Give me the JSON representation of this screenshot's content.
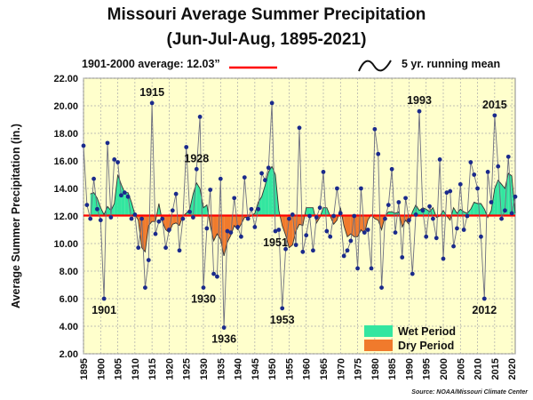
{
  "title_line1": "Missouri Average Summer Precipitation",
  "title_line2": "(Jun-Jul-Aug, 1895-2021)",
  "average_note": "1901-2000 average: 12.03”",
  "running_mean_note": "5 yr. running mean",
  "source": "Source: NOAA/Missouri Climate Center",
  "colors": {
    "plot_bg": "#ffffcc",
    "wet": "#33e6a0",
    "dry": "#f07a2c",
    "average": "#ff0000",
    "points": "#1a2a8c",
    "line": "#6d6f80"
  },
  "chart_data": {
    "type": "line",
    "title": "Missouri Average Summer Precipitation",
    "subtitle": "(Jun-Jul-Aug, 1895-2021)",
    "ylabel": "Average Summer Precipitation (in.)",
    "xlabel": "",
    "ylim": [
      2,
      22
    ],
    "xlim": [
      1895,
      2021
    ],
    "yticks": [
      "2.00",
      "4.00",
      "6.00",
      "8.00",
      "10.00",
      "12.00",
      "14.00",
      "16.00",
      "18.00",
      "20.00",
      "22.00"
    ],
    "xticks": [
      1895,
      1900,
      1905,
      1910,
      1915,
      1920,
      1925,
      1930,
      1935,
      1940,
      1945,
      1950,
      1955,
      1960,
      1965,
      1970,
      1975,
      1980,
      1985,
      1990,
      1995,
      2000,
      2005,
      2010,
      2015,
      2020
    ],
    "average": 12.03,
    "grid": true,
    "legend": [
      {
        "label": "Wet Period",
        "color": "#33e6a0"
      },
      {
        "label": "Dry Period",
        "color": "#f07a2c"
      }
    ],
    "legend_position": "bottom-right",
    "annotations": [
      {
        "year": 1901,
        "label": "1901"
      },
      {
        "year": 1915,
        "label": "1915"
      },
      {
        "year": 1928,
        "label": "1928"
      },
      {
        "year": 1930,
        "label": "1930"
      },
      {
        "year": 1936,
        "label": "1936"
      },
      {
        "year": 1951,
        "label": "1951"
      },
      {
        "year": 1953,
        "label": "1953"
      },
      {
        "year": 1993,
        "label": "1993"
      },
      {
        "year": 2012,
        "label": "2012"
      },
      {
        "year": 2015,
        "label": "2015"
      }
    ],
    "years": [
      1895,
      1896,
      1897,
      1898,
      1899,
      1900,
      1901,
      1902,
      1903,
      1904,
      1905,
      1906,
      1907,
      1908,
      1909,
      1910,
      1911,
      1912,
      1913,
      1914,
      1915,
      1916,
      1917,
      1918,
      1919,
      1920,
      1921,
      1922,
      1923,
      1924,
      1925,
      1926,
      1927,
      1928,
      1929,
      1930,
      1931,
      1932,
      1933,
      1934,
      1935,
      1936,
      1937,
      1938,
      1939,
      1940,
      1941,
      1942,
      1943,
      1944,
      1945,
      1946,
      1947,
      1948,
      1949,
      1950,
      1951,
      1952,
      1953,
      1954,
      1955,
      1956,
      1957,
      1958,
      1959,
      1960,
      1961,
      1962,
      1963,
      1964,
      1965,
      1966,
      1967,
      1968,
      1969,
      1970,
      1971,
      1972,
      1973,
      1974,
      1975,
      1976,
      1977,
      1978,
      1979,
      1980,
      1981,
      1982,
      1983,
      1984,
      1985,
      1986,
      1987,
      1988,
      1989,
      1990,
      1991,
      1992,
      1993,
      1994,
      1995,
      1996,
      1997,
      1998,
      1999,
      2000,
      2001,
      2002,
      2003,
      2004,
      2005,
      2006,
      2007,
      2008,
      2009,
      2010,
      2011,
      2012,
      2013,
      2014,
      2015,
      2016,
      2017,
      2018,
      2019,
      2020,
      2021
    ],
    "series": [
      {
        "name": "",
        "values": [
          17.1,
          12.8,
          11.8,
          14.7,
          12.5,
          11.7,
          6.0,
          17.3,
          11.9,
          16.1,
          15.9,
          13.5,
          13.7,
          13.4,
          11.8,
          12.1,
          9.7,
          11.8,
          6.8,
          8.8,
          20.2,
          10.7,
          11.6,
          11.8,
          9.7,
          11.0,
          12.4,
          13.6,
          9.5,
          11.8,
          17.0,
          12.3,
          11.9,
          15.4,
          19.2,
          6.8,
          11.1,
          13.9,
          7.8,
          7.6,
          14.7,
          3.9,
          10.9,
          10.8,
          13.3,
          11.2,
          10.5,
          14.8,
          11.8,
          12.5,
          11.2,
          12.5,
          15.1,
          14.6,
          15.5,
          20.2,
          10.9,
          11.0,
          5.3,
          9.6,
          11.8,
          12.1,
          9.9,
          18.4,
          9.4,
          10.6,
          12.0,
          9.5,
          11.9,
          12.6,
          15.2,
          10.9,
          10.5,
          12.0,
          14.0,
          12.2,
          9.1,
          9.5,
          10.2,
          12.0,
          8.2,
          14.0,
          10.8,
          11.0,
          8.2,
          18.3,
          16.5,
          6.8,
          11.8,
          12.8,
          15.4,
          10.8,
          13.0,
          9.0,
          13.3,
          11.7,
          7.8,
          12.1,
          19.6,
          12.4,
          10.5,
          12.7,
          11.8,
          10.4,
          16.1,
          8.9,
          13.7,
          13.8,
          9.8,
          11.1,
          14.3,
          11.0,
          12.0,
          15.9,
          15.0,
          14.0,
          10.5,
          6.0,
          15.2,
          13.0,
          19.3,
          15.6,
          11.8,
          12.4,
          16.3,
          12.2,
          13.4
        ]
      },
      {
        "name": "5 yr. running mean",
        "values": [
          null,
          null,
          13.6,
          13.7,
          13.3,
          12.6,
          12.1,
          12.7,
          12.4,
          12.9,
          15.0,
          14.3,
          13.7,
          13.7,
          13.0,
          12.1,
          11.7,
          9.7,
          9.4,
          11.3,
          11.6,
          11.6,
          12.9,
          11.6,
          11.0,
          10.8,
          11.4,
          11.5,
          11.3,
          12.0,
          12.2,
          12.5,
          13.6,
          14.4,
          14.0,
          12.6,
          12.8,
          11.3,
          10.2,
          10.7,
          10.3,
          9.1,
          10.1,
          10.6,
          11.3,
          11.0,
          11.4,
          11.9,
          11.9,
          12.0,
          12.2,
          13.0,
          13.4,
          14.2,
          15.2,
          15.6,
          15.0,
          12.4,
          11.3,
          10.6,
          9.7,
          9.9,
          10.9,
          11.4,
          11.3,
          12.6,
          12.6,
          12.6,
          11.5,
          11.9,
          12.6,
          12.6,
          12.0,
          11.4,
          11.7,
          12.6,
          11.3,
          10.5,
          10.7,
          10.5,
          10.5,
          11.0,
          10.7,
          11.7,
          12.1,
          11.8,
          11.7,
          11.0,
          12.0,
          12.3,
          12.3,
          12.2,
          12.3,
          11.2,
          11.7,
          11.4,
          12.3,
          12.8,
          12.4,
          12.6,
          12.5,
          12.3,
          12.6,
          11.9,
          12.0,
          12.4,
          12.0,
          11.7,
          12.6,
          12.2,
          12.5,
          12.3,
          12.2,
          12.5,
          13.0,
          12.9,
          12.9,
          12.5,
          11.9,
          12.4,
          14.0,
          14.6,
          14.3,
          14.0,
          15.1,
          14.9,
          12.2
        ]
      }
    ]
  }
}
